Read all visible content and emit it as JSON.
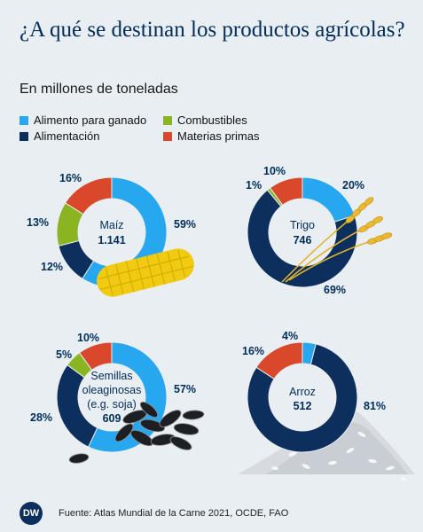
{
  "title": "¿A qué se destinan los productos agrícolas?",
  "subtitle": "En millones de toneladas",
  "legend": [
    {
      "label": "Alimento para ganado",
      "color": "#27a7f0"
    },
    {
      "label": "Combustibles",
      "color": "#8ab520"
    },
    {
      "label": "Alimentación",
      "color": "#0d2f5e"
    },
    {
      "label": "Materias primas",
      "color": "#d9482a"
    }
  ],
  "footer": {
    "logo": "DW",
    "source": "Fuente: Atlas Mundial de la Carne 2021, OCDE, FAO"
  },
  "chart_data": [
    {
      "type": "pie",
      "variant": "donut",
      "name": "Maíz",
      "total": "1.141",
      "categories": [
        "Alimento para ganado",
        "Alimentación",
        "Combustibles",
        "Materias primas"
      ],
      "values": [
        59,
        12,
        13,
        16
      ],
      "labels": [
        "59%",
        "12%",
        "13%",
        "16%"
      ],
      "illustration": "corn-cob"
    },
    {
      "type": "pie",
      "variant": "donut",
      "name": "Trigo",
      "total": "746",
      "categories": [
        "Alimento para ganado",
        "Alimentación",
        "Combustibles",
        "Materias primas"
      ],
      "values": [
        20,
        69,
        1,
        10
      ],
      "labels": [
        "20%",
        "69%",
        "1%",
        "10%"
      ],
      "illustration": "wheat-ears"
    },
    {
      "type": "pie",
      "variant": "donut",
      "name": "Semillas oleaginosas (e.g. soja)",
      "name_lines": [
        "Semillas",
        "oleaginosas",
        "(e.g. soja)"
      ],
      "total": "609",
      "categories": [
        "Alimento para ganado",
        "Alimentación",
        "Combustibles",
        "Materias primas"
      ],
      "values": [
        57,
        28,
        5,
        10
      ],
      "labels": [
        "57%",
        "28%",
        "5%",
        "10%"
      ],
      "illustration": "sunflower-seeds"
    },
    {
      "type": "pie",
      "variant": "donut",
      "name": "Arroz",
      "total": "512",
      "categories": [
        "Alimento para ganado",
        "Alimentación",
        "Combustibles",
        "Materias primas"
      ],
      "values": [
        4,
        81,
        0,
        16
      ],
      "labels": [
        "4%",
        "81%",
        "",
        "16%"
      ],
      "illustration": "rice-pile"
    }
  ]
}
